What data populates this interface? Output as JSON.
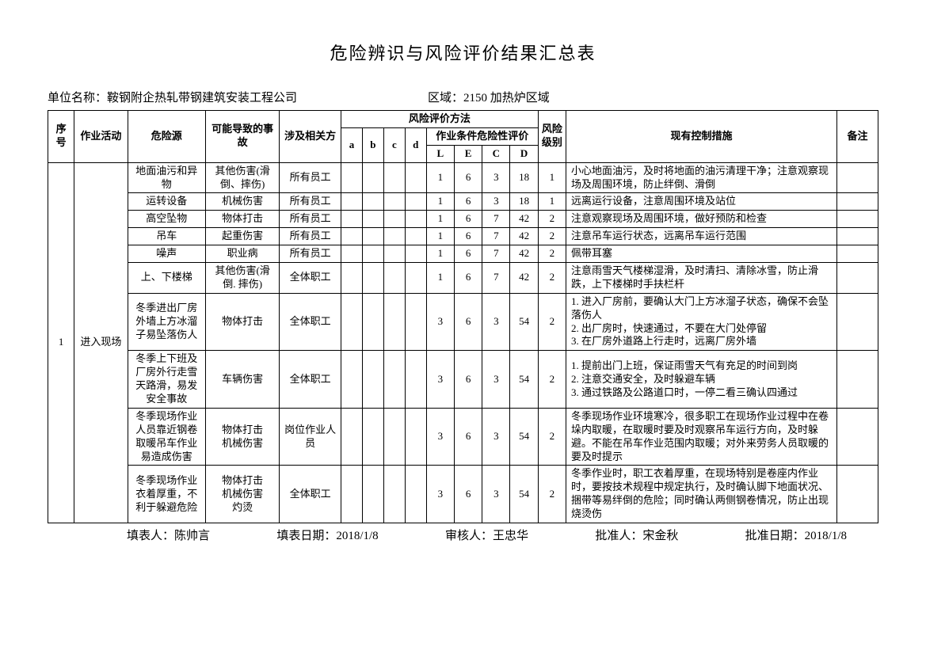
{
  "doc": {
    "title": "危险辨识与风险评价结果汇总表",
    "unit_label": "单位名称：",
    "unit_value": "鞍钢附企热轧带钢建筑安装工程公司",
    "area_label": "区域：",
    "area_value": "2150 加热炉区域"
  },
  "headers": {
    "seq": "序号",
    "activity": "作业活动",
    "hazard": "危险源",
    "accident": "可能导致的事故",
    "party": "涉及相关方",
    "method": "风险评价方法",
    "a": "a",
    "b": "b",
    "c": "c",
    "d": "d",
    "cond": "作业条件危险性评价",
    "L": "L",
    "E": "E",
    "C": "C",
    "D": "D",
    "level": "风险级别",
    "measure": "现有控制措施",
    "remark": "备注"
  },
  "group": {
    "seq": "1",
    "activity": "进入现场"
  },
  "rows": [
    {
      "hazard": "地面油污和异物",
      "accident": "其他伤害(滑倒、摔伤)",
      "party": "所有员工",
      "L": "1",
      "E": "6",
      "C": "3",
      "D": "18",
      "level": "1",
      "measure": "小心地面油污，及时将地面的油污清理干净；注意观察现场及周围环境，防止绊倒、滑倒"
    },
    {
      "hazard": "运转设备",
      "accident": "机械伤害",
      "party": "所有员工",
      "L": "1",
      "E": "6",
      "C": "3",
      "D": "18",
      "level": "1",
      "measure": "远离运行设备，注意周围环境及站位"
    },
    {
      "hazard": "高空坠物",
      "accident": "物体打击",
      "party": "所有员工",
      "L": "1",
      "E": "6",
      "C": "7",
      "D": "42",
      "level": "2",
      "measure": "注意观察现场及周围环境，做好预防和检查"
    },
    {
      "hazard": "吊车",
      "accident": "起重伤害",
      "party": "所有员工",
      "L": "1",
      "E": "6",
      "C": "7",
      "D": "42",
      "level": "2",
      "measure": "注意吊车运行状态，远离吊车运行范围"
    },
    {
      "hazard": "噪声",
      "accident": "职业病",
      "party": "所有员工",
      "L": "1",
      "E": "6",
      "C": "7",
      "D": "42",
      "level": "2",
      "measure": "佩带耳塞"
    },
    {
      "hazard": "上、下楼梯",
      "accident": "其他伤害(滑倒. 摔伤)",
      "party": "全体职工",
      "L": "1",
      "E": "6",
      "C": "7",
      "D": "42",
      "level": "2",
      "measure": "注意雨雪天气楼梯湿滑，及时清扫、清除冰雪，防止滑跌，上下楼梯时手扶栏杆"
    },
    {
      "hazard": "冬季进出厂房外墙上方冰溜子易坠落伤人",
      "accident": "物体打击",
      "party": "全体职工",
      "L": "3",
      "E": "6",
      "C": "3",
      "D": "54",
      "level": "2",
      "measure": "1. 进入厂房前，要确认大门上方冰溜子状态，确保不会坠落伤人\n2. 出厂房时，快速通过，不要在大门处停留\n3. 在厂房外道路上行走时，远离厂房外墙"
    },
    {
      "hazard": "冬季上下班及厂房外行走雪天路滑，易发安全事故",
      "accident": "车辆伤害",
      "party": "全体职工",
      "L": "3",
      "E": "6",
      "C": "3",
      "D": "54",
      "level": "2",
      "measure": "1. 提前出门上班，保证雨雪天气有充足的时间到岗\n2. 注意交通安全，及时躲避车辆\n3. 通过铁路及公路道口时，一停二看三确认四通过"
    },
    {
      "hazard": "冬季现场作业人员靠近钢卷取暖吊车作业易造成伤害",
      "accident": "物体打击\n机械伤害",
      "party": "岗位作业人员",
      "L": "3",
      "E": "6",
      "C": "3",
      "D": "54",
      "level": "2",
      "measure": "冬季现场作业环境寒冷，很多职工在现场作业过程中在卷垛内取暖，在取暖时要及时观察吊车运行方向，及时躲避。不能在吊车作业范围内取暖；对外来劳务人员取暖的要及时提示"
    },
    {
      "hazard": "冬季现场作业衣着厚重，不利于躲避危险",
      "accident": "物体打击\n机械伤害\n灼烫",
      "party": "全体职工",
      "L": "3",
      "E": "6",
      "C": "3",
      "D": "54",
      "level": "2",
      "measure": "冬季作业时，职工衣着厚重，在现场特别是卷座内作业时，要按技术规程中规定执行，及时确认脚下地面状况、捆带等易绊倒的危险；同时确认两侧钢卷情况，防止出现烧烫伤"
    }
  ],
  "footer": {
    "filler_label": "填表人：",
    "filler": "陈帅言",
    "fill_date_label": "填表日期：",
    "fill_date": "2018/1/8",
    "reviewer_label": "审核人：",
    "reviewer": "王忠华",
    "approver_label": "批准人：",
    "approver": "宋金秋",
    "approve_date_label": "批准日期：",
    "approve_date": "2018/1/8"
  }
}
